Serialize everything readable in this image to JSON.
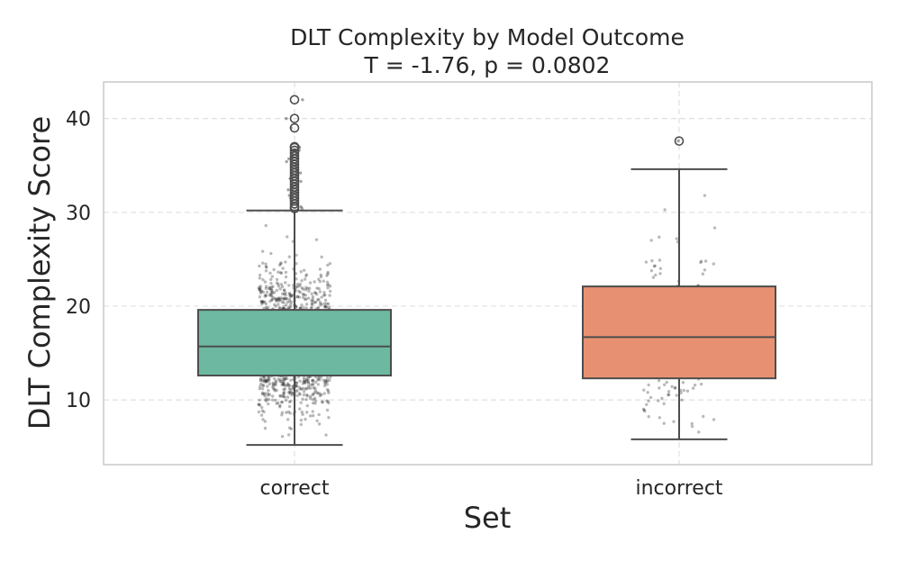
{
  "chart_data": {
    "type": "box",
    "title": "DLT Complexity by Model Outcome",
    "subtitle": "T = -1.76, p = 0.0802",
    "xlabel": "Set",
    "ylabel": "DLT Complexity Score",
    "ylim": [
      3.1,
      43.9
    ],
    "yticks": [
      10,
      20,
      30,
      40
    ],
    "grid": true,
    "categories": [
      "correct",
      "incorrect"
    ],
    "colors": [
      "#6db8a1",
      "#e89172"
    ],
    "boxes": [
      {
        "category": "correct",
        "whisker_low": 5.2,
        "q1": 12.6,
        "median": 15.7,
        "q3": 19.6,
        "whisker_high": 30.2,
        "outliers": [
          30.4,
          30.6,
          30.9,
          31.2,
          31.5,
          31.8,
          32.1,
          32.4,
          32.7,
          33.0,
          33.3,
          33.6,
          33.9,
          34.2,
          34.5,
          34.8,
          35.1,
          35.4,
          35.7,
          36.0,
          36.3,
          36.6,
          36.9,
          37.0,
          39.0,
          40.0,
          42.0
        ],
        "jitter_count": 1500
      },
      {
        "category": "incorrect",
        "whisker_low": 5.8,
        "q1": 12.3,
        "median": 16.7,
        "q3": 22.1,
        "whisker_high": 34.6,
        "outliers": [
          37.6
        ],
        "jitter_count": 210
      }
    ]
  }
}
